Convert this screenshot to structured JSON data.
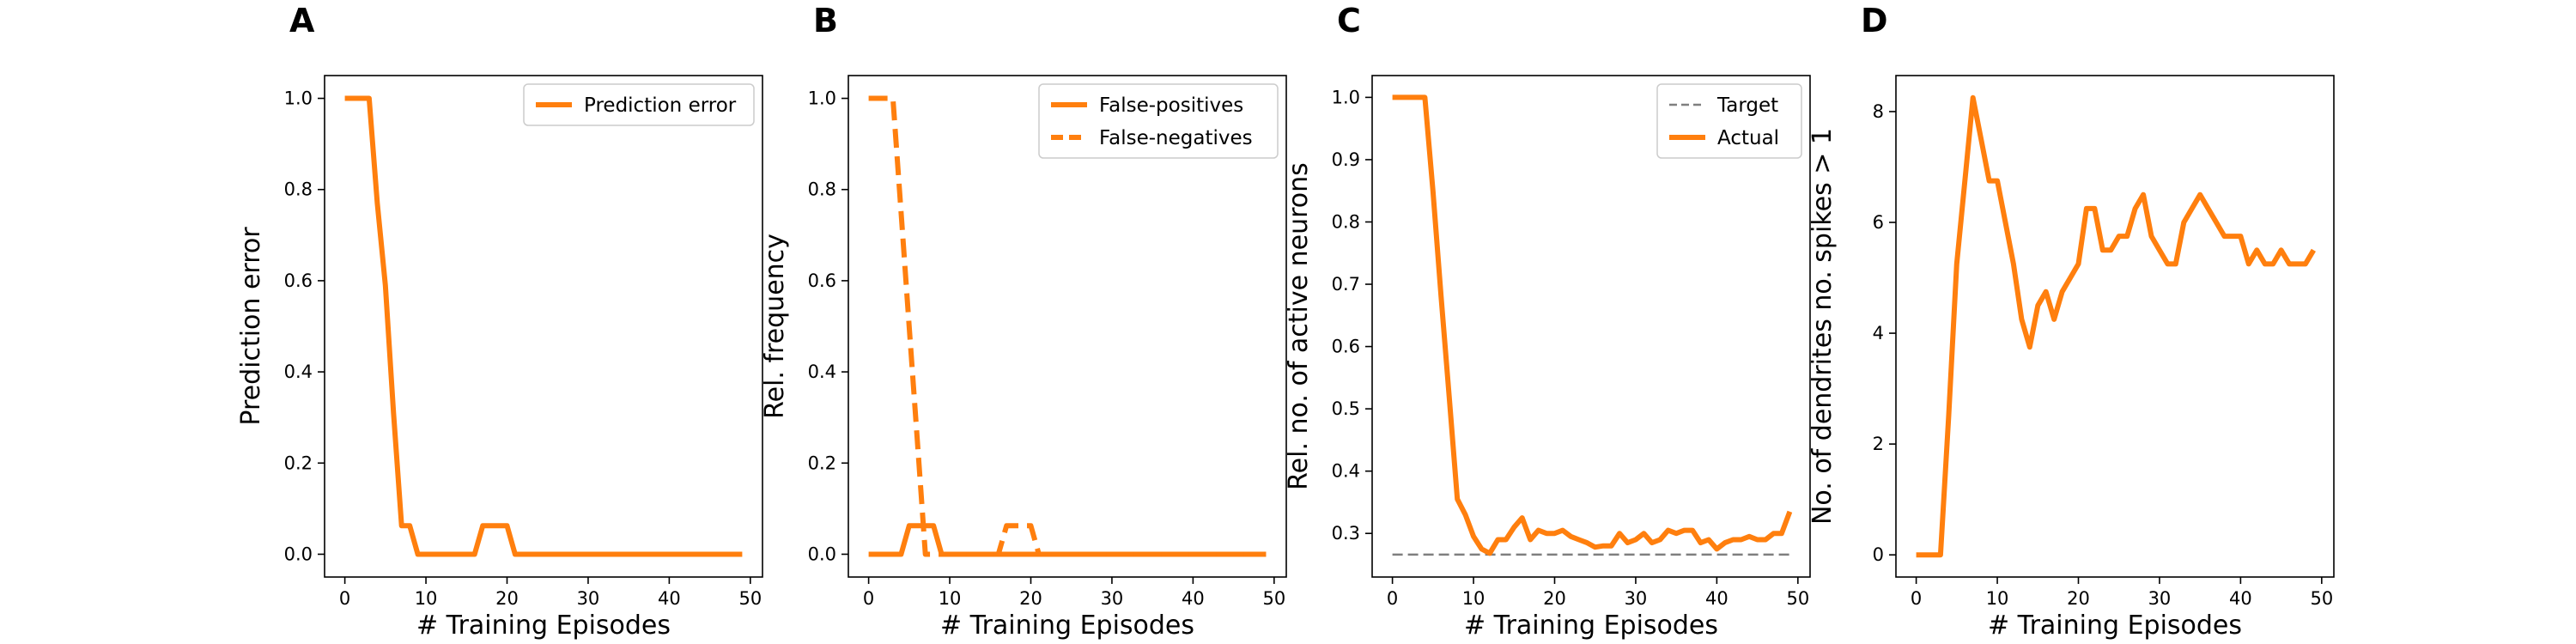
{
  "colors": {
    "series": "#ff7f0e",
    "target": "#7f7f7f",
    "axis": "#000000",
    "legend_border": "#cccccc"
  },
  "chart_data": [
    {
      "type": "line",
      "panel_label": "A",
      "xlabel": "# Training Episodes",
      "ylabel": "Prediction error",
      "xlim": [
        -2.5,
        51.5
      ],
      "ylim": [
        -0.05,
        1.05
      ],
      "xticks": [
        0,
        10,
        20,
        30,
        40,
        50
      ],
      "yticks": [
        0.0,
        0.2,
        0.4,
        0.6,
        0.8,
        1.0
      ],
      "ytick_labels": [
        "0.0",
        "0.2",
        "0.4",
        "0.6",
        "0.8",
        "1.0"
      ],
      "legend": "top-right",
      "series": [
        {
          "name": "Prediction error",
          "style": "solid",
          "x": [
            0,
            1,
            2,
            3,
            4,
            5,
            6,
            7,
            8,
            9,
            10,
            11,
            12,
            13,
            14,
            15,
            16,
            17,
            18,
            19,
            20,
            21,
            22,
            23,
            24,
            25,
            26,
            27,
            28,
            29,
            30,
            31,
            32,
            33,
            34,
            35,
            36,
            37,
            38,
            39,
            40,
            41,
            42,
            43,
            44,
            45,
            46,
            47,
            48,
            49
          ],
          "y": [
            1,
            1,
            1,
            1,
            0.77,
            0.59,
            0.31,
            0.0625,
            0.0625,
            0,
            0,
            0,
            0,
            0,
            0,
            0,
            0,
            0.0625,
            0.0625,
            0.0625,
            0.0625,
            0,
            0,
            0,
            0,
            0,
            0,
            0,
            0,
            0,
            0,
            0,
            0,
            0,
            0,
            0,
            0,
            0,
            0,
            0,
            0,
            0,
            0,
            0,
            0,
            0,
            0,
            0,
            0,
            0
          ]
        }
      ]
    },
    {
      "type": "line",
      "panel_label": "B",
      "xlabel": "# Training Episodes",
      "ylabel": "Rel. frequency",
      "xlim": [
        -2.5,
        51.5
      ],
      "ylim": [
        -0.05,
        1.05
      ],
      "xticks": [
        0,
        10,
        20,
        30,
        40,
        50
      ],
      "yticks": [
        0.0,
        0.2,
        0.4,
        0.6,
        0.8,
        1.0
      ],
      "ytick_labels": [
        "0.0",
        "0.2",
        "0.4",
        "0.6",
        "0.8",
        "1.0"
      ],
      "legend": "top-right",
      "series": [
        {
          "name": "False-positives",
          "style": "solid",
          "x": [
            0,
            1,
            2,
            3,
            4,
            5,
            6,
            7,
            8,
            9,
            10,
            11,
            12,
            13,
            14,
            15,
            16,
            17,
            18,
            19,
            20,
            21,
            22,
            23,
            24,
            25,
            26,
            27,
            28,
            29,
            30,
            31,
            32,
            33,
            34,
            35,
            36,
            37,
            38,
            39,
            40,
            41,
            42,
            43,
            44,
            45,
            46,
            47,
            48,
            49
          ],
          "y": [
            0,
            0,
            0,
            0,
            0,
            0.0625,
            0.0625,
            0.0625,
            0.0625,
            0,
            0,
            0,
            0,
            0,
            0,
            0,
            0,
            0,
            0,
            0,
            0,
            0,
            0,
            0,
            0,
            0,
            0,
            0,
            0,
            0,
            0,
            0,
            0,
            0,
            0,
            0,
            0,
            0,
            0,
            0,
            0,
            0,
            0,
            0,
            0,
            0,
            0,
            0,
            0,
            0
          ]
        },
        {
          "name": "False-negatives",
          "style": "dashed",
          "x": [
            0,
            1,
            2,
            3,
            4,
            5,
            6,
            7,
            8,
            9,
            10,
            11,
            12,
            13,
            14,
            15,
            16,
            17,
            18,
            19,
            20,
            21,
            22,
            23,
            24,
            25,
            26,
            27,
            28,
            29,
            30,
            31,
            32,
            33,
            34,
            35,
            36,
            37,
            38,
            39,
            40,
            41,
            42,
            43,
            44,
            45,
            46,
            47,
            48,
            49
          ],
          "y": [
            1,
            1,
            1,
            1,
            0.75,
            0.5,
            0.25,
            0,
            0,
            0,
            0,
            0,
            0,
            0,
            0,
            0,
            0,
            0.0625,
            0.0625,
            0.0625,
            0.0625,
            0,
            0,
            0,
            0,
            0,
            0,
            0,
            0,
            0,
            0,
            0,
            0,
            0,
            0,
            0,
            0,
            0,
            0,
            0,
            0,
            0,
            0,
            0,
            0,
            0,
            0,
            0,
            0,
            0
          ]
        }
      ]
    },
    {
      "type": "line",
      "panel_label": "C",
      "xlabel": "# Training Episodes",
      "ylabel": "Rel. no. of active neurons",
      "xlim": [
        -2.5,
        51.5
      ],
      "ylim": [
        0.23,
        1.035
      ],
      "xticks": [
        0,
        10,
        20,
        30,
        40,
        50
      ],
      "yticks": [
        0.3,
        0.4,
        0.5,
        0.6,
        0.7,
        0.8,
        0.9,
        1.0
      ],
      "ytick_labels": [
        "0.3",
        "0.4",
        "0.5",
        "0.6",
        "0.7",
        "0.8",
        "0.9",
        "1.0"
      ],
      "legend": "top-right",
      "series": [
        {
          "name": "Target",
          "style": "dashed-thin",
          "x": [
            0,
            49
          ],
          "y": [
            0.266,
            0.266
          ]
        },
        {
          "name": "Actual",
          "style": "solid",
          "x": [
            0,
            1,
            2,
            3,
            4,
            5,
            6,
            7,
            8,
            9,
            10,
            11,
            12,
            13,
            14,
            15,
            16,
            17,
            18,
            19,
            20,
            21,
            22,
            23,
            24,
            25,
            26,
            27,
            28,
            29,
            30,
            31,
            32,
            33,
            34,
            35,
            36,
            37,
            38,
            39,
            40,
            41,
            42,
            43,
            44,
            45,
            46,
            47,
            48,
            49
          ],
          "y": [
            1,
            1,
            1,
            1,
            1,
            0.85,
            0.68,
            0.52,
            0.355,
            0.33,
            0.295,
            0.275,
            0.268,
            0.29,
            0.29,
            0.31,
            0.325,
            0.29,
            0.305,
            0.3,
            0.3,
            0.305,
            0.295,
            0.29,
            0.285,
            0.278,
            0.28,
            0.28,
            0.3,
            0.285,
            0.29,
            0.3,
            0.285,
            0.29,
            0.305,
            0.3,
            0.305,
            0.305,
            0.285,
            0.29,
            0.275,
            0.285,
            0.29,
            0.29,
            0.295,
            0.29,
            0.29,
            0.3,
            0.3,
            0.335
          ]
        }
      ]
    },
    {
      "type": "line",
      "panel_label": "D",
      "xlabel": "# Training Episodes",
      "ylabel": "No. of dendrites no. spikes > 1",
      "xlim": [
        -2.5,
        51.5
      ],
      "ylim": [
        -0.4,
        8.65
      ],
      "xticks": [
        0,
        10,
        20,
        30,
        40,
        50
      ],
      "yticks": [
        0,
        2,
        4,
        6,
        8
      ],
      "ytick_labels": [
        "0",
        "2",
        "4",
        "6",
        "8"
      ],
      "legend": "none",
      "series": [
        {
          "name": "",
          "style": "solid",
          "x": [
            0,
            1,
            2,
            3,
            4,
            5,
            6,
            7,
            8,
            9,
            10,
            11,
            12,
            13,
            14,
            15,
            16,
            17,
            18,
            19,
            20,
            21,
            22,
            23,
            24,
            25,
            26,
            27,
            28,
            29,
            30,
            31,
            32,
            33,
            34,
            35,
            36,
            37,
            38,
            39,
            40,
            41,
            42,
            43,
            44,
            45,
            46,
            47,
            48,
            49
          ],
          "y": [
            0,
            0,
            0,
            0,
            2.5,
            5.25,
            6.75,
            8.25,
            7.5,
            6.75,
            6.75,
            6.0,
            5.25,
            4.25,
            3.75,
            4.5,
            4.75,
            4.25,
            4.75,
            5.0,
            5.25,
            6.25,
            6.25,
            5.5,
            5.5,
            5.75,
            5.75,
            6.25,
            6.5,
            5.75,
            5.5,
            5.25,
            5.25,
            6.0,
            6.25,
            6.5,
            6.25,
            6.0,
            5.75,
            5.75,
            5.75,
            5.25,
            5.5,
            5.25,
            5.25,
            5.5,
            5.25,
            5.25,
            5.25,
            5.5
          ]
        }
      ]
    }
  ]
}
